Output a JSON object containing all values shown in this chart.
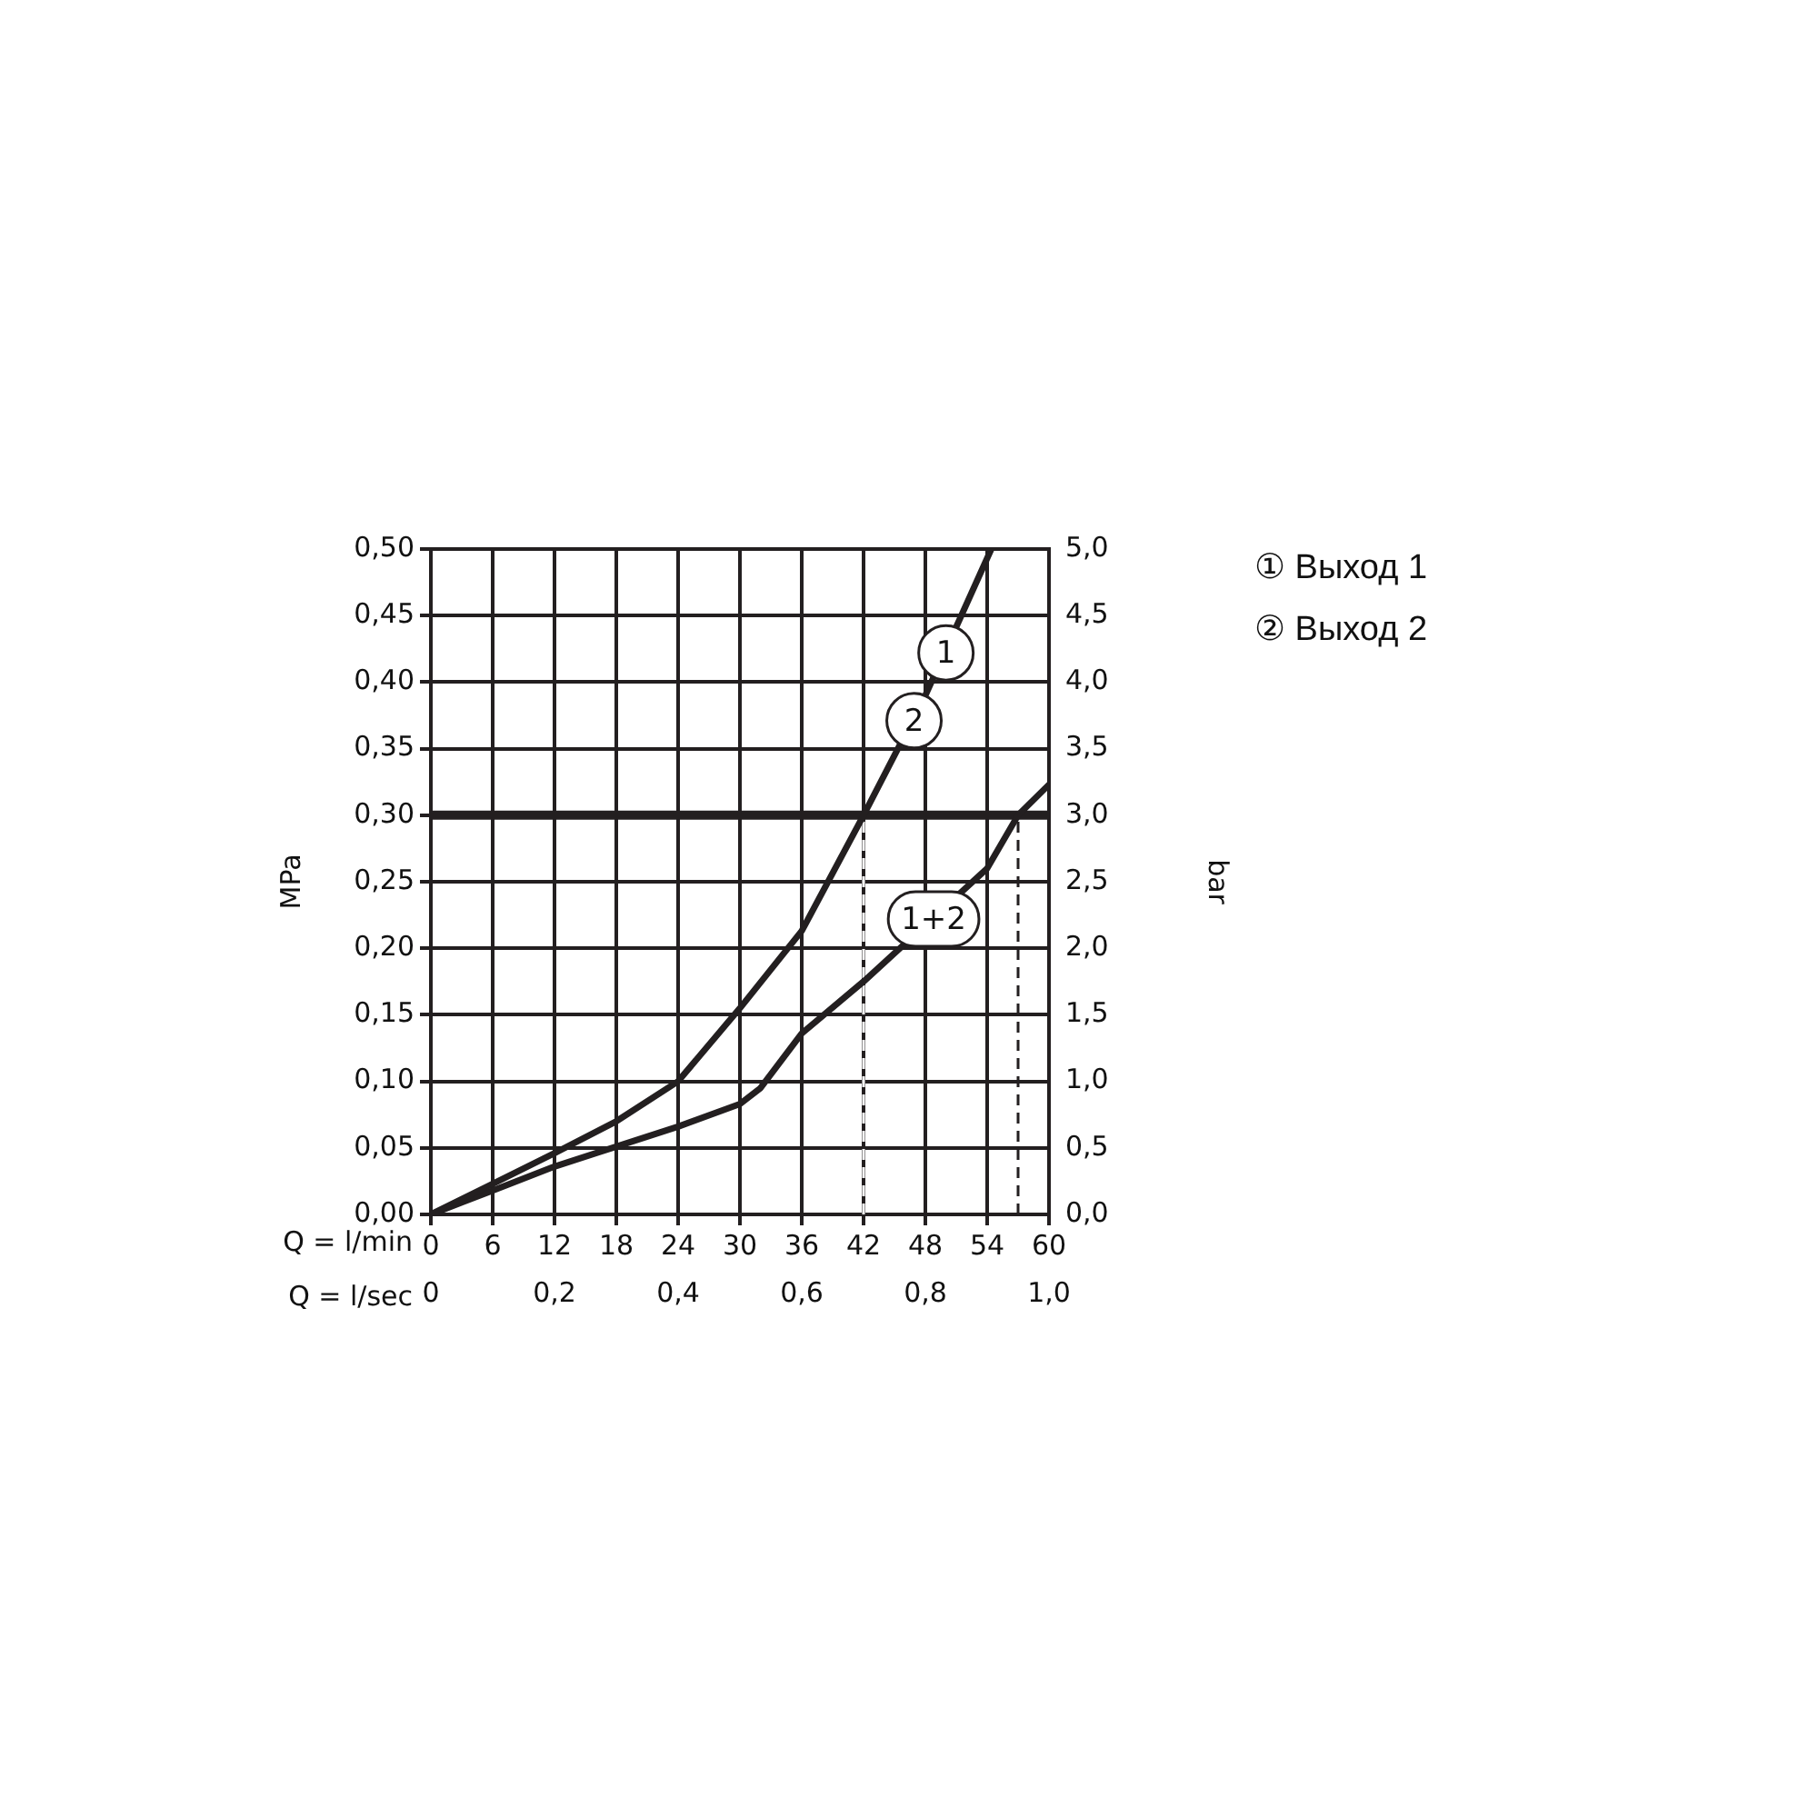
{
  "chart_data": {
    "type": "line",
    "xlabel": "Q = l/min",
    "x2label": "Q = l/sec",
    "ylabel": "MPa",
    "y2label": "bar",
    "xlim": [
      0,
      60
    ],
    "xticks": [
      0,
      6,
      12,
      18,
      24,
      30,
      36,
      42,
      48,
      54,
      60
    ],
    "x2lim": [
      0,
      1
    ],
    "x2ticks": [
      {
        "value": 0,
        "label": "0"
      },
      {
        "value": 0.2,
        "label": "0,2"
      },
      {
        "value": 0.4,
        "label": "0,4"
      },
      {
        "value": 0.6,
        "label": "0,6"
      },
      {
        "value": 0.8,
        "label": "0,8"
      },
      {
        "value": 1,
        "label": "1,0"
      }
    ],
    "ylim": [
      0,
      0.5
    ],
    "yticks": [
      {
        "value": 0,
        "label": "0,00"
      },
      {
        "value": 0.05,
        "label": "0,05"
      },
      {
        "value": 0.1,
        "label": "0,10"
      },
      {
        "value": 0.15,
        "label": "0,15"
      },
      {
        "value": 0.2,
        "label": "0,20"
      },
      {
        "value": 0.25,
        "label": "0,25"
      },
      {
        "value": 0.3,
        "label": "0,30"
      },
      {
        "value": 0.35,
        "label": "0,35"
      },
      {
        "value": 0.4,
        "label": "0,40"
      },
      {
        "value": 0.45,
        "label": "0,45"
      },
      {
        "value": 0.5,
        "label": "0,50"
      }
    ],
    "y2lim": [
      0,
      5
    ],
    "y2ticks": [
      {
        "value": 0,
        "label": "0,0"
      },
      {
        "value": 0.5,
        "label": "0,5"
      },
      {
        "value": 1,
        "label": "1,0"
      },
      {
        "value": 1.5,
        "label": "1,5"
      },
      {
        "value": 2,
        "label": "2,0"
      },
      {
        "value": 2.5,
        "label": "2,5"
      },
      {
        "value": 3,
        "label": "3,0"
      },
      {
        "value": 3.5,
        "label": "3,5"
      },
      {
        "value": 4,
        "label": "4,0"
      },
      {
        "value": 4.5,
        "label": "4,5"
      },
      {
        "value": 5,
        "label": "5,0"
      }
    ],
    "series": [
      {
        "color": "#231f20",
        "x": [
          0,
          6,
          12,
          18,
          24,
          30,
          36,
          42,
          48,
          54.4
        ],
        "values": [
          0,
          0.023,
          0.046,
          0.07,
          0.1,
          0.155,
          0.213,
          0.3,
          0.39,
          0.5
        ]
      },
      {
        "color": "#231f20",
        "x": [
          0,
          6,
          12,
          18,
          24,
          30,
          32,
          36,
          42,
          54,
          57,
          60
        ],
        "values": [
          0,
          0.018,
          0.036,
          0.051,
          0.066,
          0.083,
          0.095,
          0.136,
          0.175,
          0.26,
          0.3,
          0.323
        ]
      }
    ],
    "ref_lines": [
      {
        "axis": "y",
        "value": 0.3,
        "color": "#231f20",
        "line_style": "solid"
      },
      {
        "axis": "x",
        "value": 42,
        "color": "#ffffff",
        "line_style": "dashed"
      },
      {
        "axis": "x",
        "value": 57,
        "color": "#231f20",
        "line_style": "dashed"
      }
    ],
    "annotations": [
      {
        "text": "1",
        "x": 50,
        "y": 0.422
      },
      {
        "text": "2",
        "x": 46.9,
        "y": 0.371
      },
      {
        "text": "1+2",
        "x": 48.8,
        "y": 0.222
      },
      "① Выход 1",
      "② Выход 2"
    ],
    "grid": true,
    "marker": "none",
    "line_style": "solid",
    "legend": false
  }
}
